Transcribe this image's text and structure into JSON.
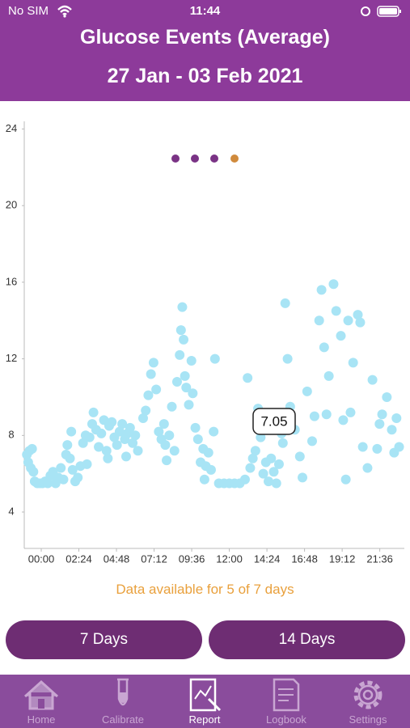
{
  "status_bar": {
    "carrier": "No SIM",
    "time": "11:44"
  },
  "header": {
    "title": "Glucose Events (Average)",
    "subtitle": "27 Jan - 03 Feb 2021"
  },
  "chart_data": {
    "type": "scatter",
    "color": "#a8e4f5",
    "grid": false,
    "annotation": "7.05",
    "xlim": [
      -65,
      1390
    ],
    "ylim": [
      2.1,
      24.4
    ],
    "xticks": [
      {
        "value": 0,
        "label": "00:00"
      },
      {
        "value": 144,
        "label": "02:24"
      },
      {
        "value": 288,
        "label": "04:48"
      },
      {
        "value": 432,
        "label": "07:12"
      },
      {
        "value": 576,
        "label": "09:36"
      },
      {
        "value": 720,
        "label": "12:00"
      },
      {
        "value": 864,
        "label": "14:24"
      },
      {
        "value": 1008,
        "label": "16:48"
      },
      {
        "value": 1152,
        "label": "19:12"
      },
      {
        "value": 1296,
        "label": "21:36"
      }
    ],
    "yticks": [
      4,
      8,
      12,
      16,
      20,
      24
    ],
    "x": [
      -55,
      -50,
      -45,
      -40,
      -35,
      -30,
      -25,
      -15,
      -5,
      5,
      15,
      25,
      35,
      45,
      55,
      65,
      75,
      85,
      95,
      100,
      110,
      115,
      120,
      130,
      140,
      150,
      160,
      170,
      175,
      185,
      195,
      200,
      210,
      220,
      230,
      240,
      250,
      255,
      260,
      270,
      280,
      290,
      300,
      310,
      320,
      325,
      330,
      340,
      350,
      360,
      370,
      390,
      400,
      410,
      420,
      430,
      440,
      450,
      460,
      470,
      475,
      480,
      490,
      500,
      510,
      520,
      530,
      535,
      540,
      545,
      550,
      555,
      565,
      575,
      580,
      590,
      600,
      610,
      620,
      625,
      630,
      640,
      650,
      660,
      665,
      680,
      700,
      720,
      740,
      760,
      780,
      790,
      800,
      810,
      820,
      830,
      840,
      850,
      860,
      870,
      880,
      890,
      900,
      910,
      920,
      925,
      934,
      943,
      953,
      971,
      990,
      1000,
      1018,
      1037,
      1046,
      1064,
      1073,
      1083,
      1092,
      1101,
      1119,
      1129,
      1147,
      1156,
      1166,
      1175,
      1184,
      1194,
      1212,
      1221,
      1231,
      1249,
      1268,
      1286,
      1295,
      1305,
      1323,
      1342,
      1351,
      1360,
      1370
    ],
    "values": [
      7.0,
      6.6,
      7.2,
      6.3,
      7.3,
      6.1,
      5.6,
      5.5,
      5.5,
      5.5,
      5.6,
      5.5,
      5.9,
      6.1,
      5.5,
      5.8,
      6.3,
      5.7,
      7.0,
      7.5,
      6.8,
      8.2,
      6.2,
      5.6,
      5.8,
      6.4,
      7.6,
      8.0,
      6.5,
      7.9,
      8.6,
      9.2,
      8.3,
      7.4,
      8.1,
      8.8,
      7.2,
      6.8,
      8.5,
      8.7,
      7.9,
      7.5,
      8.2,
      8.6,
      7.8,
      6.9,
      8.1,
      8.4,
      7.6,
      8.0,
      7.2,
      8.9,
      9.3,
      10.1,
      11.2,
      11.8,
      10.4,
      8.2,
      7.8,
      8.6,
      7.5,
      6.7,
      8.0,
      9.5,
      7.2,
      10.8,
      12.2,
      13.5,
      14.7,
      13.0,
      11.1,
      10.5,
      9.6,
      11.9,
      10.2,
      8.4,
      7.8,
      6.6,
      7.3,
      5.7,
      6.4,
      7.1,
      6.2,
      8.2,
      12.0,
      5.5,
      5.5,
      5.5,
      5.5,
      5.5,
      5.7,
      11.0,
      6.3,
      6.8,
      7.2,
      9.4,
      7.9,
      6.0,
      6.6,
      5.6,
      6.8,
      6.1,
      5.5,
      6.5,
      8.1,
      7.6,
      14.9,
      12.0,
      9.5,
      8.3,
      6.9,
      5.8,
      10.3,
      7.7,
      9.0,
      14.0,
      15.6,
      12.6,
      9.1,
      11.1,
      15.9,
      14.5,
      13.2,
      8.8,
      5.7,
      14.0,
      9.2,
      11.8,
      14.3,
      13.9,
      7.4,
      6.3,
      10.9,
      7.3,
      8.6,
      9.1,
      10.0,
      8.3,
      7.1,
      8.9,
      7.4
    ]
  },
  "availability": "Data available for 5 of 7 days",
  "buttons": [
    "7 Days",
    "14 Days"
  ],
  "tabs": [
    "Home",
    "Calibrate",
    "Report",
    "Logbook",
    "Settings"
  ]
}
